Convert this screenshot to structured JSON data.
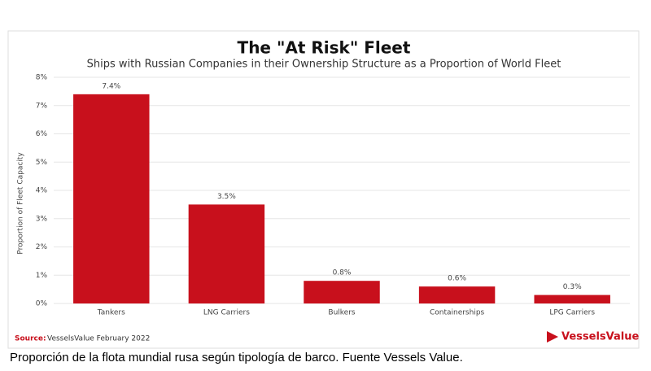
{
  "chart_data": {
    "type": "bar",
    "title": "The \"At Risk\" Fleet",
    "subtitle": "Ships with Russian Companies in their Ownership Structure as a Proportion of World Fleet",
    "y_label": "Proportion of Fleet Capacity",
    "categories": [
      "Tankers",
      "LNG Carriers",
      "Bulkers",
      "Containerships",
      "LPG Carriers"
    ],
    "values": [
      7.4,
      3.5,
      0.8,
      0.6,
      0.3
    ],
    "value_labels": [
      "7.4%",
      "3.5%",
      "0.8%",
      "0.6%",
      "0.3%"
    ],
    "color": "#c8101c",
    "ylim": [
      0,
      8
    ],
    "yticks": [
      {
        "value": 0,
        "label": "0%"
      },
      {
        "value": 1,
        "label": "1%"
      },
      {
        "value": 2,
        "label": "2%"
      },
      {
        "value": 3,
        "label": "3%"
      },
      {
        "value": 4,
        "label": "4%"
      },
      {
        "value": 5,
        "label": "5%"
      },
      {
        "value": 6,
        "label": "6%"
      },
      {
        "value": 7,
        "label": "7%"
      },
      {
        "value": 8,
        "label": "8%"
      }
    ],
    "grid": true,
    "source_label": "Source:",
    "source": "VesselsValue February 2022",
    "logo": "VesselsValue"
  },
  "caption": "Proporción de la flota mundial rusa según tipología de barco. Fuente Vessels Value."
}
